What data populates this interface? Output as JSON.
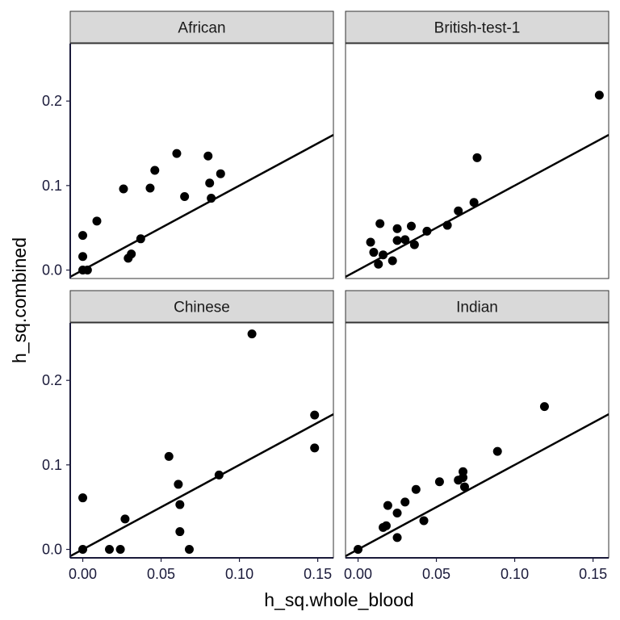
{
  "chart_data": {
    "type": "scatter",
    "xlabel": "h_sq.whole_blood",
    "ylabel": "h_sq.combined",
    "xlim": [
      -0.008,
      0.16
    ],
    "ylim": [
      -0.01,
      0.268
    ],
    "x_ticks": [
      0.0,
      0.05,
      0.1,
      0.15
    ],
    "x_tick_labels": [
      "0.00",
      "0.05",
      "0.10",
      "0.15"
    ],
    "y_ticks": [
      0.0,
      0.1,
      0.2
    ],
    "y_tick_labels": [
      "0.0",
      "0.1",
      "0.2"
    ],
    "reference_line": {
      "intercept": 0,
      "slope": 1
    },
    "facets": [
      {
        "name": "African",
        "points": [
          {
            "x": 0.0,
            "y": 0.041
          },
          {
            "x": 0.0,
            "y": 0.016
          },
          {
            "x": 0.0,
            "y": 0.0
          },
          {
            "x": 0.003,
            "y": 0.0
          },
          {
            "x": 0.009,
            "y": 0.058
          },
          {
            "x": 0.026,
            "y": 0.096
          },
          {
            "x": 0.029,
            "y": 0.014
          },
          {
            "x": 0.031,
            "y": 0.019
          },
          {
            "x": 0.037,
            "y": 0.037
          },
          {
            "x": 0.043,
            "y": 0.097
          },
          {
            "x": 0.046,
            "y": 0.118
          },
          {
            "x": 0.06,
            "y": 0.138
          },
          {
            "x": 0.065,
            "y": 0.087
          },
          {
            "x": 0.08,
            "y": 0.135
          },
          {
            "x": 0.081,
            "y": 0.103
          },
          {
            "x": 0.082,
            "y": 0.085
          },
          {
            "x": 0.088,
            "y": 0.114
          }
        ]
      },
      {
        "name": "British-test-1",
        "points": [
          {
            "x": 0.008,
            "y": 0.033
          },
          {
            "x": 0.01,
            "y": 0.021
          },
          {
            "x": 0.013,
            "y": 0.007
          },
          {
            "x": 0.014,
            "y": 0.055
          },
          {
            "x": 0.016,
            "y": 0.018
          },
          {
            "x": 0.022,
            "y": 0.011
          },
          {
            "x": 0.025,
            "y": 0.049
          },
          {
            "x": 0.025,
            "y": 0.035
          },
          {
            "x": 0.03,
            "y": 0.036
          },
          {
            "x": 0.034,
            "y": 0.052
          },
          {
            "x": 0.036,
            "y": 0.03
          },
          {
            "x": 0.044,
            "y": 0.046
          },
          {
            "x": 0.057,
            "y": 0.053
          },
          {
            "x": 0.064,
            "y": 0.07
          },
          {
            "x": 0.074,
            "y": 0.08
          },
          {
            "x": 0.076,
            "y": 0.133
          },
          {
            "x": 0.154,
            "y": 0.207
          }
        ]
      },
      {
        "name": "Chinese",
        "points": [
          {
            "x": 0.0,
            "y": 0.061
          },
          {
            "x": 0.0,
            "y": 0.0
          },
          {
            "x": 0.017,
            "y": 0.0
          },
          {
            "x": 0.024,
            "y": 0.0
          },
          {
            "x": 0.027,
            "y": 0.036
          },
          {
            "x": 0.055,
            "y": 0.11
          },
          {
            "x": 0.061,
            "y": 0.077
          },
          {
            "x": 0.062,
            "y": 0.053
          },
          {
            "x": 0.062,
            "y": 0.021
          },
          {
            "x": 0.068,
            "y": 0.0
          },
          {
            "x": 0.087,
            "y": 0.088
          },
          {
            "x": 0.108,
            "y": 0.255
          },
          {
            "x": 0.148,
            "y": 0.159
          },
          {
            "x": 0.148,
            "y": 0.12
          }
        ]
      },
      {
        "name": "Indian",
        "points": [
          {
            "x": 0.0,
            "y": 0.0
          },
          {
            "x": 0.016,
            "y": 0.026
          },
          {
            "x": 0.018,
            "y": 0.028
          },
          {
            "x": 0.019,
            "y": 0.052
          },
          {
            "x": 0.025,
            "y": 0.043
          },
          {
            "x": 0.025,
            "y": 0.014
          },
          {
            "x": 0.03,
            "y": 0.056
          },
          {
            "x": 0.037,
            "y": 0.071
          },
          {
            "x": 0.042,
            "y": 0.034
          },
          {
            "x": 0.052,
            "y": 0.08
          },
          {
            "x": 0.064,
            "y": 0.082
          },
          {
            "x": 0.067,
            "y": 0.085
          },
          {
            "x": 0.067,
            "y": 0.092
          },
          {
            "x": 0.068,
            "y": 0.074
          },
          {
            "x": 0.089,
            "y": 0.116
          },
          {
            "x": 0.119,
            "y": 0.169
          }
        ]
      }
    ],
    "grid": false,
    "point_color": "#000000",
    "line_color": "#000000",
    "strip_fill": "#d9d9d9"
  }
}
